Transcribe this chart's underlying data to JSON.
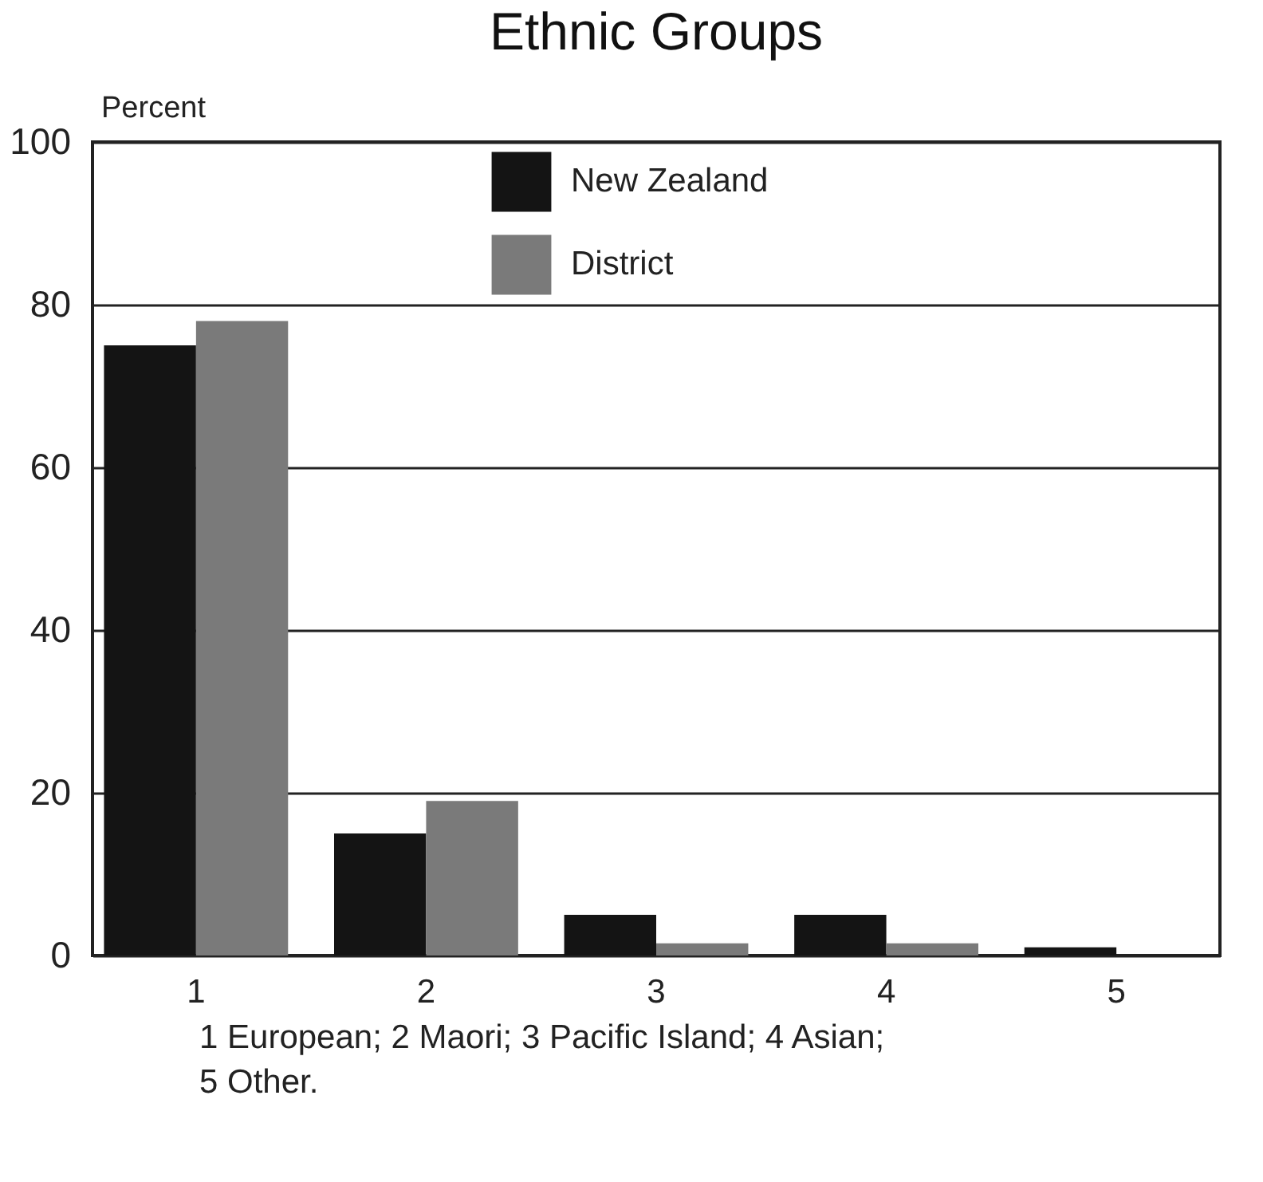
{
  "chart_data": {
    "type": "bar",
    "title": "Ethnic Groups",
    "ylabel": "Percent",
    "categories": [
      "1",
      "2",
      "3",
      "4",
      "5"
    ],
    "series": [
      {
        "name": "New Zealand",
        "color": "#141414",
        "values": [
          75,
          15,
          5,
          5,
          1
        ]
      },
      {
        "name": "District",
        "color": "#7a7a7a",
        "values": [
          78,
          19,
          1.5,
          1.5,
          0
        ]
      }
    ],
    "ylim": [
      0,
      100
    ],
    "yticks": [
      0,
      20,
      40,
      60,
      80,
      100
    ],
    "grid": "y",
    "legend": "top",
    "annotations": [
      "1 European; 2 Maori; 3 Pacific Island; 4 Asian; 5 Other."
    ]
  }
}
